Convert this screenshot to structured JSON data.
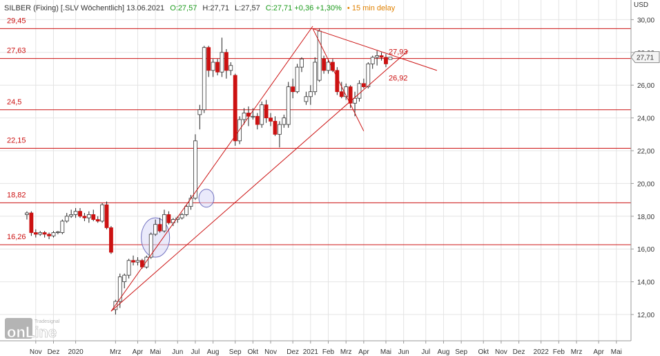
{
  "header": {
    "instrument": "SILBER (Fixing) [.SLV Wöchentlich] 13.06.2021",
    "open": "O:27,57",
    "high": "H:27,71",
    "low": "L:27,57",
    "close": "C:27,71 +0,36 +1,30%",
    "delay": "• 15 min delay"
  },
  "axis": {
    "unit": "USD",
    "current_price_label": "27,71",
    "y_ticks": [
      "12,00",
      "14,00",
      "16,00",
      "18,00",
      "20,00",
      "22,00",
      "24,00",
      "26,00",
      "28,00",
      "30,00"
    ],
    "x_ticks": [
      {
        "label": "Nov",
        "t": -10
      },
      {
        "label": "Dez",
        "t": -6
      },
      {
        "label": "2020",
        "t": -1
      },
      {
        "label": "Mrz",
        "t": 8
      },
      {
        "label": "Apr",
        "t": 13
      },
      {
        "label": "Mai",
        "t": 17
      },
      {
        "label": "Jun",
        "t": 22
      },
      {
        "label": "Jul",
        "t": 26
      },
      {
        "label": "Aug",
        "t": 30
      },
      {
        "label": "Sep",
        "t": 35
      },
      {
        "label": "Okt",
        "t": 39
      },
      {
        "label": "Nov",
        "t": 43
      },
      {
        "label": "Dez",
        "t": 48
      },
      {
        "label": "2021",
        "t": 52
      },
      {
        "label": "Feb",
        "t": 56
      },
      {
        "label": "Mrz",
        "t": 60
      },
      {
        "label": "Apr",
        "t": 64
      },
      {
        "label": "Mai",
        "t": 69
      },
      {
        "label": "Jun",
        "t": 73
      },
      {
        "label": "Jul",
        "t": 78
      },
      {
        "label": "Aug",
        "t": 82
      },
      {
        "label": "Sep",
        "t": 86
      },
      {
        "label": "Okt",
        "t": 91
      },
      {
        "label": "Nov",
        "t": 95
      },
      {
        "label": "Dez",
        "t": 99
      },
      {
        "label": "2022",
        "t": 104
      },
      {
        "label": "Feb",
        "t": 108
      },
      {
        "label": "Mrz",
        "t": 112
      },
      {
        "label": "Apr",
        "t": 117
      },
      {
        "label": "Mai",
        "t": 121
      }
    ]
  },
  "branding": {
    "logo_main": "onLine",
    "logo_small": "Tradesignal"
  },
  "colors": {
    "up": "#ffffff",
    "down": "#cc1111",
    "wick": "#222222",
    "level": "#cc1111",
    "trend": "#cc1111",
    "ellipse_fill": "#d8d8f8",
    "ellipse_stroke": "#7070c0"
  },
  "chart_data": {
    "type": "candlestick",
    "title": "SILBER (Fixing) [.SLV Wöchentlich] 13.06.2021",
    "ylabel": "USD",
    "ylim": [
      10.8,
      30.8
    ],
    "grid": true,
    "time_unit": "week index, 0 = first week of January 2020",
    "horizontal_levels": [
      {
        "label": "29,45",
        "value": 29.45
      },
      {
        "label": "27,63",
        "value": 27.63
      },
      {
        "label": "24,5",
        "value": 24.5
      },
      {
        "label": "22,15",
        "value": 22.15
      },
      {
        "label": "18,82",
        "value": 18.82
      },
      {
        "label": "16,26",
        "value": 16.26
      }
    ],
    "annotations": [
      {
        "label": "27,93",
        "value": 27.93
      },
      {
        "label": "26,92",
        "value": 26.92
      }
    ],
    "trendlines": [
      {
        "from": {
          "t": 7,
          "v": 12.2
        },
        "to": {
          "t": 52.5,
          "v": 29.6
        }
      },
      {
        "from": {
          "t": 7,
          "v": 12.2
        },
        "to": {
          "t": 74,
          "v": 28.1
        }
      },
      {
        "from": {
          "t": 52.5,
          "v": 29.45
        },
        "to": {
          "t": 80.5,
          "v": 26.9
        }
      },
      {
        "from": {
          "t": 52.5,
          "v": 29.45
        },
        "to": {
          "t": 64,
          "v": 23.2
        }
      }
    ],
    "highlights": [
      {
        "t": 17,
        "v": 16.7,
        "rx_weeks": 1.6,
        "ry_usd": 1.2
      },
      {
        "t": 28.5,
        "v": 19.1,
        "rx_weeks": 0.85,
        "ry_usd": 0.55
      }
    ],
    "candles": [
      {
        "t": -12,
        "o": 18.1,
        "h": 18.3,
        "l": 17.8,
        "c": 18.2
      },
      {
        "t": -11,
        "o": 18.2,
        "h": 18.3,
        "l": 16.8,
        "c": 17.0
      },
      {
        "t": -10,
        "o": 17.0,
        "h": 17.2,
        "l": 16.7,
        "c": 16.9
      },
      {
        "t": -9,
        "o": 16.9,
        "h": 17.1,
        "l": 16.8,
        "c": 17.0
      },
      {
        "t": -8,
        "o": 17.0,
        "h": 17.1,
        "l": 16.7,
        "c": 16.9
      },
      {
        "t": -7,
        "o": 16.9,
        "h": 17.0,
        "l": 16.6,
        "c": 16.8
      },
      {
        "t": -6,
        "o": 16.8,
        "h": 17.1,
        "l": 16.7,
        "c": 17.0
      },
      {
        "t": -5,
        "o": 17.0,
        "h": 17.1,
        "l": 16.9,
        "c": 17.05
      },
      {
        "t": -4,
        "o": 17.0,
        "h": 17.8,
        "l": 16.9,
        "c": 17.7
      },
      {
        "t": -3,
        "o": 17.7,
        "h": 18.2,
        "l": 17.6,
        "c": 18.0
      },
      {
        "t": -2,
        "o": 18.0,
        "h": 18.4,
        "l": 17.9,
        "c": 18.1
      },
      {
        "t": -1,
        "o": 18.1,
        "h": 18.5,
        "l": 17.9,
        "c": 18.3
      },
      {
        "t": 0,
        "o": 18.3,
        "h": 18.5,
        "l": 17.9,
        "c": 18.0
      },
      {
        "t": 1,
        "o": 18.0,
        "h": 18.2,
        "l": 17.7,
        "c": 17.9
      },
      {
        "t": 2,
        "o": 17.9,
        "h": 18.3,
        "l": 17.6,
        "c": 18.1
      },
      {
        "t": 3,
        "o": 18.1,
        "h": 18.4,
        "l": 17.7,
        "c": 17.8
      },
      {
        "t": 4,
        "o": 17.8,
        "h": 18.0,
        "l": 17.6,
        "c": 17.7
      },
      {
        "t": 5,
        "o": 17.7,
        "h": 18.8,
        "l": 17.6,
        "c": 18.7
      },
      {
        "t": 6,
        "o": 18.7,
        "h": 18.9,
        "l": 17.2,
        "c": 17.3
      },
      {
        "t": 7,
        "o": 17.3,
        "h": 17.4,
        "l": 15.7,
        "c": 15.8
      },
      {
        "t": 8,
        "o": 12.3,
        "h": 12.9,
        "l": 12.0,
        "c": 12.8
      },
      {
        "t": 9,
        "o": 12.8,
        "h": 14.5,
        "l": 12.4,
        "c": 14.3
      },
      {
        "t": 10,
        "o": 14.0,
        "h": 14.5,
        "l": 13.6,
        "c": 14.4
      },
      {
        "t": 11,
        "o": 14.4,
        "h": 15.4,
        "l": 14.2,
        "c": 15.3
      },
      {
        "t": 12,
        "o": 15.3,
        "h": 15.6,
        "l": 15.0,
        "c": 15.2
      },
      {
        "t": 13,
        "o": 15.2,
        "h": 15.5,
        "l": 15.0,
        "c": 15.3
      },
      {
        "t": 14,
        "o": 15.3,
        "h": 15.4,
        "l": 14.8,
        "c": 14.9
      },
      {
        "t": 15,
        "o": 14.9,
        "h": 15.6,
        "l": 14.8,
        "c": 15.5
      },
      {
        "t": 16,
        "o": 15.5,
        "h": 17.0,
        "l": 15.4,
        "c": 16.9
      },
      {
        "t": 17,
        "o": 16.9,
        "h": 17.8,
        "l": 16.8,
        "c": 17.5
      },
      {
        "t": 18,
        "o": 17.5,
        "h": 17.9,
        "l": 17.0,
        "c": 17.1
      },
      {
        "t": 19,
        "o": 17.1,
        "h": 18.4,
        "l": 17.0,
        "c": 18.1
      },
      {
        "t": 20,
        "o": 18.1,
        "h": 18.3,
        "l": 17.5,
        "c": 17.6
      },
      {
        "t": 21,
        "o": 17.6,
        "h": 17.9,
        "l": 17.4,
        "c": 17.8
      },
      {
        "t": 22,
        "o": 17.8,
        "h": 18.0,
        "l": 17.6,
        "c": 17.9
      },
      {
        "t": 23,
        "o": 17.9,
        "h": 18.2,
        "l": 17.8,
        "c": 18.1
      },
      {
        "t": 24,
        "o": 18.1,
        "h": 18.7,
        "l": 18.0,
        "c": 18.6
      },
      {
        "t": 25,
        "o": 18.6,
        "h": 19.3,
        "l": 18.4,
        "c": 19.1
      },
      {
        "t": 26,
        "o": 19.1,
        "h": 23.0,
        "l": 19.0,
        "c": 22.6
      },
      {
        "t": 27,
        "o": 24.2,
        "h": 24.8,
        "l": 23.3,
        "c": 24.5
      },
      {
        "t": 28,
        "o": 24.5,
        "h": 28.4,
        "l": 24.3,
        "c": 28.3
      },
      {
        "t": 29,
        "o": 28.3,
        "h": 28.4,
        "l": 26.5,
        "c": 26.9
      },
      {
        "t": 30,
        "o": 26.9,
        "h": 27.6,
        "l": 26.5,
        "c": 27.4
      },
      {
        "t": 31,
        "o": 27.4,
        "h": 27.6,
        "l": 26.6,
        "c": 26.8
      },
      {
        "t": 32,
        "o": 26.8,
        "h": 28.9,
        "l": 26.5,
        "c": 28.0
      },
      {
        "t": 33,
        "o": 28.0,
        "h": 28.2,
        "l": 26.4,
        "c": 26.9
      },
      {
        "t": 34,
        "o": 26.9,
        "h": 27.4,
        "l": 26.6,
        "c": 27.2
      },
      {
        "t": 35,
        "o": 26.6,
        "h": 26.7,
        "l": 22.3,
        "c": 22.6
      },
      {
        "t": 36,
        "o": 22.6,
        "h": 24.1,
        "l": 22.4,
        "c": 23.9
      },
      {
        "t": 37,
        "o": 23.9,
        "h": 24.6,
        "l": 23.6,
        "c": 24.3
      },
      {
        "t": 38,
        "o": 24.3,
        "h": 24.7,
        "l": 23.5,
        "c": 24.1
      },
      {
        "t": 39,
        "o": 24.1,
        "h": 24.6,
        "l": 23.9,
        "c": 24.1
      },
      {
        "t": 40,
        "o": 24.1,
        "h": 24.3,
        "l": 23.3,
        "c": 23.6
      },
      {
        "t": 41,
        "o": 23.6,
        "h": 25.0,
        "l": 23.4,
        "c": 24.8
      },
      {
        "t": 42,
        "o": 24.8,
        "h": 25.1,
        "l": 23.7,
        "c": 24.0
      },
      {
        "t": 43,
        "o": 24.0,
        "h": 24.3,
        "l": 23.5,
        "c": 23.8
      },
      {
        "t": 44,
        "o": 23.8,
        "h": 24.1,
        "l": 22.9,
        "c": 23.0
      },
      {
        "t": 45,
        "o": 23.0,
        "h": 23.8,
        "l": 22.2,
        "c": 23.6
      },
      {
        "t": 46,
        "o": 23.6,
        "h": 24.2,
        "l": 23.4,
        "c": 24.0
      },
      {
        "t": 47,
        "o": 23.6,
        "h": 26.2,
        "l": 23.4,
        "c": 25.9
      },
      {
        "t": 48,
        "o": 25.9,
        "h": 26.4,
        "l": 25.2,
        "c": 25.6
      },
      {
        "t": 49,
        "o": 25.6,
        "h": 27.3,
        "l": 25.5,
        "c": 27.1
      },
      {
        "t": 50,
        "o": 27.1,
        "h": 27.7,
        "l": 26.8,
        "c": 27.6
      },
      {
        "t": 51,
        "o": 25.0,
        "h": 25.6,
        "l": 24.8,
        "c": 25.3
      },
      {
        "t": 52,
        "o": 25.3,
        "h": 26.0,
        "l": 24.8,
        "c": 25.6
      },
      {
        "t": 53,
        "o": 25.6,
        "h": 27.7,
        "l": 25.4,
        "c": 27.4
      },
      {
        "t": 54,
        "o": 26.3,
        "h": 29.45,
        "l": 26.2,
        "c": 29.3
      },
      {
        "t": 55,
        "o": 27.6,
        "h": 27.8,
        "l": 26.7,
        "c": 26.9
      },
      {
        "t": 56,
        "o": 26.9,
        "h": 27.6,
        "l": 26.7,
        "c": 27.4
      },
      {
        "t": 57,
        "o": 27.4,
        "h": 27.6,
        "l": 26.8,
        "c": 26.9
      },
      {
        "t": 58,
        "o": 26.9,
        "h": 27.1,
        "l": 25.4,
        "c": 25.6
      },
      {
        "t": 59,
        "o": 25.6,
        "h": 26.2,
        "l": 25.2,
        "c": 25.3
      },
      {
        "t": 60,
        "o": 25.3,
        "h": 26.1,
        "l": 25.1,
        "c": 25.9
      },
      {
        "t": 61,
        "o": 25.9,
        "h": 26.0,
        "l": 24.6,
        "c": 24.9
      },
      {
        "t": 62,
        "o": 24.9,
        "h": 25.6,
        "l": 24.1,
        "c": 25.2
      },
      {
        "t": 63,
        "o": 25.2,
        "h": 26.3,
        "l": 25.0,
        "c": 26.1
      },
      {
        "t": 64,
        "o": 26.1,
        "h": 26.4,
        "l": 25.8,
        "c": 25.9
      },
      {
        "t": 65,
        "o": 25.9,
        "h": 27.4,
        "l": 25.8,
        "c": 27.3
      },
      {
        "t": 66,
        "o": 27.3,
        "h": 27.8,
        "l": 27.0,
        "c": 27.7
      },
      {
        "t": 67,
        "o": 27.7,
        "h": 28.1,
        "l": 27.2,
        "c": 27.8
      },
      {
        "t": 68,
        "o": 27.8,
        "h": 28.0,
        "l": 27.5,
        "c": 27.7
      },
      {
        "t": 69,
        "o": 27.7,
        "h": 27.9,
        "l": 27.1,
        "c": 27.3
      },
      {
        "t": 70,
        "o": 27.57,
        "h": 27.71,
        "l": 27.57,
        "c": 27.71
      }
    ]
  }
}
